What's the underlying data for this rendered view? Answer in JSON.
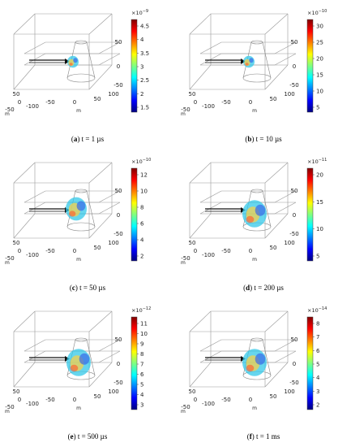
{
  "figure": {
    "panels": [
      {
        "letter": "a",
        "time": "t = 1 µs",
        "exponent": "−9",
        "ticks": [
          "4.5",
          "4",
          "3.5",
          "3",
          "2.5",
          "2",
          "1.5"
        ],
        "blob": "small"
      },
      {
        "letter": "b",
        "time": "t = 10 µs",
        "exponent": "−10",
        "ticks": [
          "30",
          "25",
          "20",
          "15",
          "10",
          "5"
        ],
        "blob": "small"
      },
      {
        "letter": "c",
        "time": "t = 50 µs",
        "exponent": "−10",
        "ticks": [
          "12",
          "10",
          "8",
          "6",
          "4",
          "2"
        ],
        "blob": "medium"
      },
      {
        "letter": "d",
        "time": "t = 200 µs",
        "exponent": "−11",
        "ticks": [
          "20",
          "15",
          "10",
          "5"
        ],
        "blob": "large"
      },
      {
        "letter": "e",
        "time": "t = 500 µs",
        "exponent": "−12",
        "ticks": [
          "11",
          "10",
          "9",
          "8",
          "7",
          "6",
          "5",
          "4",
          "3"
        ],
        "blob": "large"
      },
      {
        "letter": "f",
        "time": "t = 1 ms",
        "exponent": "−14",
        "ticks": [
          "8",
          "7",
          "6",
          "5",
          "4",
          "3",
          "2"
        ],
        "blob": "large"
      }
    ],
    "axis": {
      "z_ticks": [
        "50",
        "0",
        "-50"
      ],
      "x_ticks": [
        "-100",
        "-50",
        "0",
        "50",
        "100"
      ],
      "y_ticks": [
        "50",
        "0",
        "-50"
      ],
      "unit": "m"
    },
    "colormap": [
      "#800000",
      "#ff0000",
      "#ff8000",
      "#ffff00",
      "#80ff80",
      "#00ffff",
      "#0080ff",
      "#0000ff",
      "#000080"
    ]
  }
}
